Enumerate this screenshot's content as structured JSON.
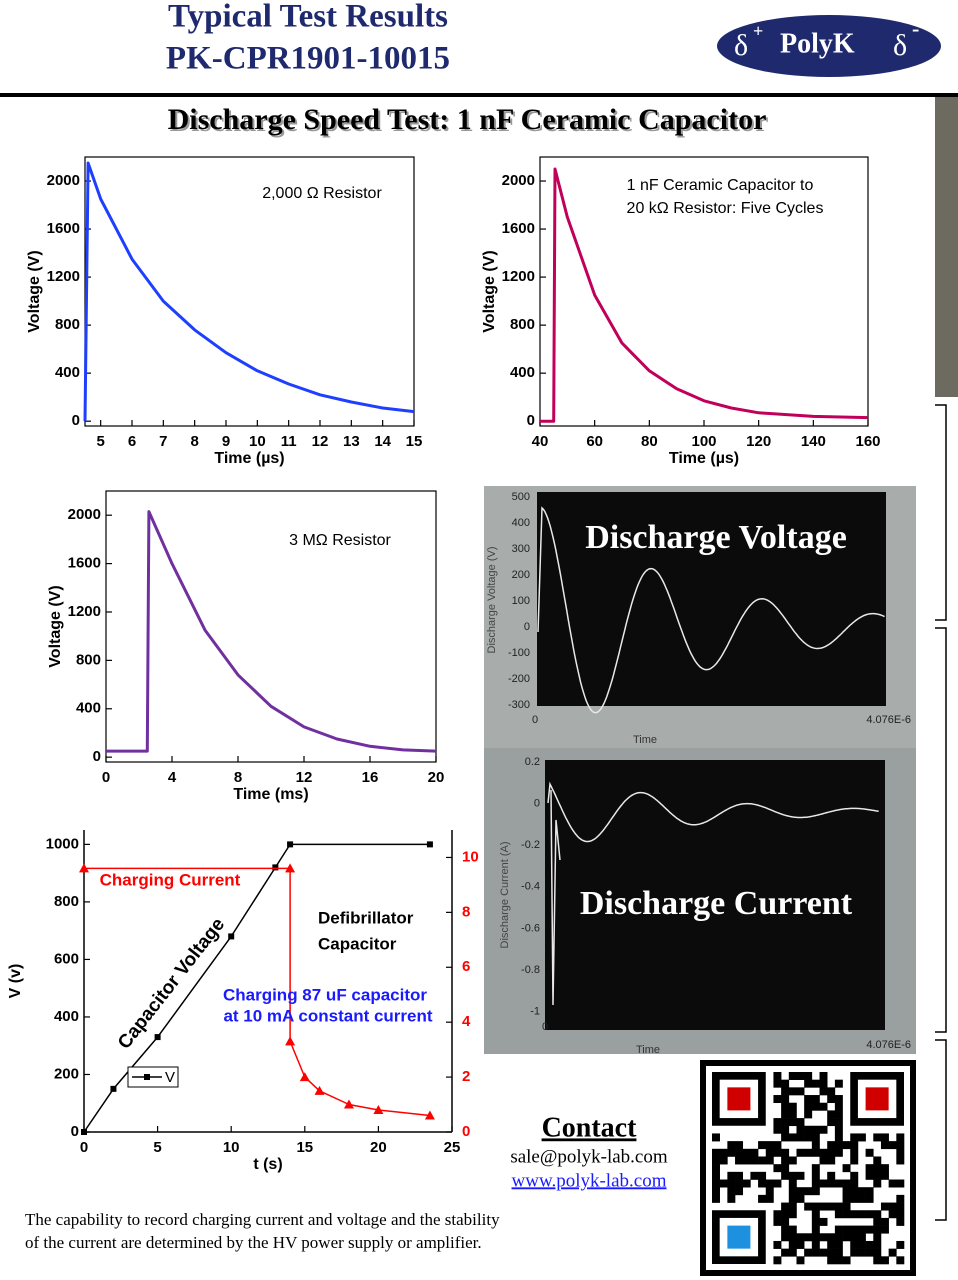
{
  "header": {
    "title_lines": [
      "Typical Test Results",
      "PK-CPR1901-10015"
    ],
    "logo": {
      "left": "δ",
      "left_sup": "+",
      "name": "PolyK",
      "right": "δ",
      "right_sup": "-"
    }
  },
  "section_title": "Discharge Speed Test: 1 nF Ceramic Capacitor",
  "chart_data": [
    {
      "type": "line",
      "annotation": [
        "2,000 Ω Resistor"
      ],
      "x_label": "Time (µs)",
      "y_label": "Voltage (V)",
      "x": [
        4.5,
        4.6,
        5,
        6,
        7,
        8,
        9,
        10,
        11,
        12,
        13,
        14,
        15
      ],
      "values": [
        0,
        2150,
        1850,
        1350,
        1000,
        760,
        570,
        420,
        310,
        220,
        160,
        110,
        80
      ],
      "color": "#1f3fff",
      "xlim": [
        4.5,
        15
      ],
      "ylim": [
        -40,
        2200
      ],
      "xticks": [
        5,
        6,
        7,
        8,
        9,
        10,
        11,
        12,
        13,
        14,
        15
      ],
      "yticks": [
        0,
        400,
        800,
        1200,
        1600,
        2000
      ]
    },
    {
      "type": "line",
      "annotation": [
        "1 nF Ceramic Capacitor to",
        "20 kΩ Resistor: Five Cycles"
      ],
      "x_label": "Time (µs)",
      "y_label": "Voltage (V)",
      "x": [
        40,
        45,
        45.5,
        50,
        60,
        70,
        80,
        90,
        100,
        110,
        120,
        140,
        160
      ],
      "values": [
        0,
        0,
        2100,
        1700,
        1050,
        650,
        420,
        270,
        170,
        110,
        70,
        40,
        30
      ],
      "color": "#c0005a",
      "xlim": [
        40,
        160
      ],
      "ylim": [
        -40,
        2200
      ],
      "xticks": [
        40,
        60,
        80,
        100,
        120,
        140,
        160
      ],
      "yticks": [
        0,
        400,
        800,
        1200,
        1600,
        2000
      ]
    },
    {
      "type": "line",
      "annotation": [
        "3 MΩ Resistor"
      ],
      "x_label": "Time (ms)",
      "y_label": "Voltage (V)",
      "x": [
        0,
        2.5,
        2.6,
        4,
        6,
        8,
        10,
        12,
        14,
        16,
        18,
        20
      ],
      "values": [
        50,
        50,
        2030,
        1600,
        1050,
        680,
        420,
        250,
        150,
        90,
        60,
        50
      ],
      "color": "#7030a0",
      "xlim": [
        0,
        20
      ],
      "ylim": [
        -40,
        2200
      ],
      "xticks": [
        0,
        4,
        8,
        12,
        16,
        20
      ],
      "yticks": [
        0,
        400,
        800,
        1200,
        1600,
        2000
      ]
    },
    {
      "type": "line",
      "annotation": [
        "Charging Current",
        "Capacitor Voltage",
        "Defibrillator",
        "Capacitor",
        "Charging 87 uF capacitor",
        "at 10 mA constant current"
      ],
      "x_label": "t (s)",
      "y_label": "V (v)",
      "series": [
        {
          "name": "V",
          "color": "#000000",
          "marker": "square",
          "x": [
            0,
            2,
            5,
            10,
            13,
            14,
            23.5
          ],
          "values": [
            0,
            150,
            330,
            680,
            920,
            1000,
            1000
          ]
        },
        {
          "color": "#ff0000",
          "marker": "triangle",
          "axis": "y2",
          "x": [
            0,
            14,
            14,
            15,
            16,
            18,
            20,
            23.5
          ],
          "values": [
            9.6,
            9.6,
            3.3,
            2.0,
            1.5,
            1.0,
            0.8,
            0.6
          ]
        }
      ],
      "xlim": [
        0,
        25
      ],
      "ylim": [
        0,
        1050
      ],
      "y2lim": [
        0,
        11
      ],
      "xticks": [
        0,
        5,
        10,
        15,
        20,
        25
      ],
      "yticks": [
        0,
        200,
        400,
        600,
        800,
        1000
      ],
      "y2ticks": [
        0,
        2,
        4,
        6,
        8,
        10
      ],
      "legend": "lower left"
    }
  ],
  "photo": {
    "voltage": {
      "label": "Discharge Voltage",
      "axis_title": "Discharge Voltage (V)",
      "ticks": [
        "500",
        "400",
        "300",
        "200",
        "100",
        "0",
        "-100",
        "-200",
        "-300"
      ],
      "x_ticks": [
        "0",
        "4.076E-6"
      ],
      "x_title": "Time"
    },
    "current": {
      "label": "Discharge Current",
      "axis_title": "Discharge Current (A)",
      "ticks": [
        "0.2",
        "0",
        "-0.2",
        "-0.4",
        "-0.6",
        "-0.8",
        "-1"
      ],
      "x_ticks": [
        "0",
        "4.076E-6"
      ],
      "x_title": "Time"
    }
  },
  "contact": {
    "title": "Contact",
    "email": "sale@polyk-lab.com",
    "website": "www.polyk-lab.com"
  },
  "footer": [
    "The capability to record charging current and voltage and the stability",
    "of the current are determined by the HV power supply or amplifier."
  ]
}
